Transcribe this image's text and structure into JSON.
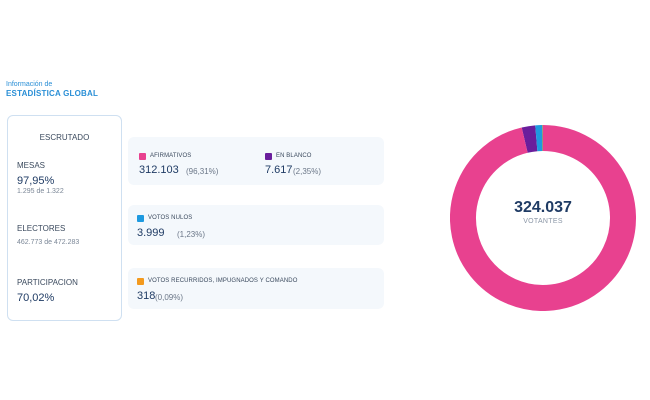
{
  "header": {
    "subtitle": "Información de",
    "title": "ESTADÍSTICA GLOBAL"
  },
  "summary": {
    "title": "ESCRUTADO",
    "mesas": {
      "label": "MESAS",
      "value": "97,95%",
      "detail": "1.295 de 1.322"
    },
    "electores": {
      "label": "ELECTORES",
      "detail": "462.773 de 472.283"
    },
    "participacion": {
      "label": "PARTICIPACION",
      "value": "70,02%"
    }
  },
  "votes": {
    "afirmativos": {
      "label": "AFIRMATIVOS",
      "value": "312.103",
      "pct": "(96,31%)",
      "color": "#e8418f"
    },
    "en_blanco": {
      "label": "EN BLANCO",
      "value": "7.617",
      "pct": "(2,35%)",
      "color": "#6a1e9c"
    },
    "nulos": {
      "label": "VOTOS NULOS",
      "value": "3.999",
      "pct": "(1,23%)",
      "color": "#1e9ae0"
    },
    "recurridos": {
      "label": "VOTOS RECURRIDOS, IMPUGNADOS Y COMANDO",
      "value": "318",
      "pct": "(0,09%)",
      "color": "#f39a1e"
    }
  },
  "donut": {
    "total": "324.037",
    "caption": "VOTANTES",
    "segments": [
      {
        "key": "afirmativos",
        "value": 312103,
        "color": "#e8418f"
      },
      {
        "key": "en_blanco",
        "value": 7617,
        "color": "#6a1e9c"
      },
      {
        "key": "nulos",
        "value": 3999,
        "color": "#1e9ae0"
      },
      {
        "key": "recurridos",
        "value": 318,
        "color": "#f39a1e"
      }
    ]
  }
}
